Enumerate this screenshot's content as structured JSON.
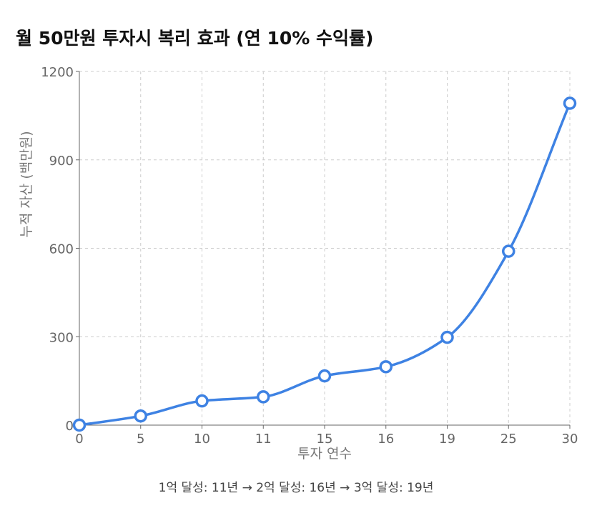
{
  "chart_data": {
    "type": "line",
    "title": "월 50만원 투자시 복리 효과 (연 10% 수익률)",
    "xlabel": "투자 연수",
    "ylabel": "누적 자산 (백만원)",
    "categories": [
      "0",
      "5",
      "10",
      "11",
      "15",
      "16",
      "19",
      "25",
      "30"
    ],
    "series": [
      {
        "values": [
          0,
          31,
          82,
          96,
          167,
          198,
          298,
          590,
          1092
        ]
      }
    ],
    "ylim": [
      0,
      1200
    ],
    "yticks": [
      0,
      300,
      600,
      900,
      1200
    ],
    "grid": true,
    "legend": "none",
    "line_color": "#3e82e3",
    "note": "1억 달성: 11년 → 2억 달성: 16년 → 3억 달성: 19년"
  }
}
